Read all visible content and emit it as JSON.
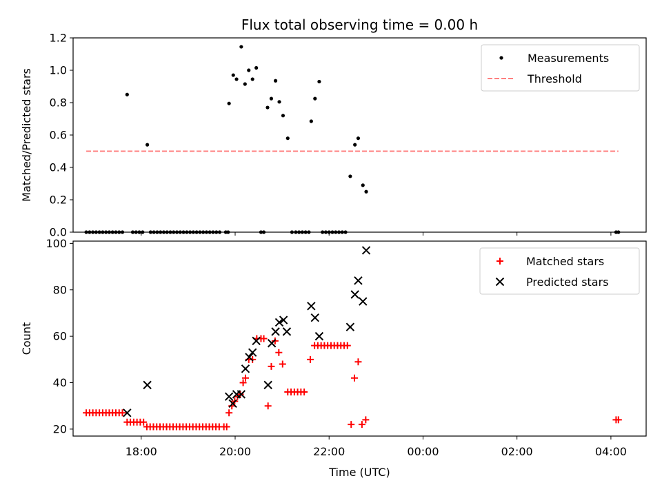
{
  "chart_data": [
    {
      "type": "scatter",
      "title": "Flux total observing time = 0.00 h",
      "xlabel": "",
      "ylabel": "Matched/Predicted stars",
      "xlim": [
        16.55,
        28.75
      ],
      "ylim": [
        0,
        1.2
      ],
      "yticks": [
        0.0,
        0.2,
        0.4,
        0.6,
        0.8,
        1.0,
        1.2
      ],
      "ytick_labels": [
        "0.0",
        "0.2",
        "0.4",
        "0.6",
        "0.8",
        "1.0",
        "1.2"
      ],
      "legend_position": "top-right",
      "series": [
        {
          "name": "Measurements",
          "marker": "dot",
          "color": "#000000",
          "points": [
            [
              16.83,
              0
            ],
            [
              16.9,
              0
            ],
            [
              16.97,
              0
            ],
            [
              17.04,
              0
            ],
            [
              17.11,
              0
            ],
            [
              17.18,
              0
            ],
            [
              17.25,
              0
            ],
            [
              17.32,
              0
            ],
            [
              17.39,
              0
            ],
            [
              17.46,
              0
            ],
            [
              17.53,
              0
            ],
            [
              17.6,
              0
            ],
            [
              17.7,
              0.85
            ],
            [
              17.82,
              0
            ],
            [
              17.89,
              0
            ],
            [
              17.96,
              0
            ],
            [
              18.03,
              0
            ],
            [
              18.13,
              0.54
            ],
            [
              18.2,
              0
            ],
            [
              18.27,
              0
            ],
            [
              18.34,
              0
            ],
            [
              18.41,
              0
            ],
            [
              18.48,
              0
            ],
            [
              18.55,
              0
            ],
            [
              18.62,
              0
            ],
            [
              18.69,
              0
            ],
            [
              18.76,
              0
            ],
            [
              18.83,
              0
            ],
            [
              18.9,
              0
            ],
            [
              18.97,
              0
            ],
            [
              19.04,
              0
            ],
            [
              19.11,
              0
            ],
            [
              19.18,
              0
            ],
            [
              19.25,
              0
            ],
            [
              19.32,
              0
            ],
            [
              19.39,
              0
            ],
            [
              19.46,
              0
            ],
            [
              19.53,
              0
            ],
            [
              19.6,
              0
            ],
            [
              19.67,
              0
            ],
            [
              19.8,
              0
            ],
            [
              19.85,
              0
            ],
            [
              19.87,
              0.795
            ],
            [
              19.96,
              0.97
            ],
            [
              20.03,
              0.945
            ],
            [
              20.13,
              1.145
            ],
            [
              20.21,
              0.915
            ],
            [
              20.29,
              1.0
            ],
            [
              20.37,
              0.945
            ],
            [
              20.45,
              1.015
            ],
            [
              20.55,
              0
            ],
            [
              20.61,
              0
            ],
            [
              20.69,
              0.77
            ],
            [
              20.77,
              0.825
            ],
            [
              20.86,
              0.935
            ],
            [
              20.94,
              0.805
            ],
            [
              21.02,
              0.72
            ],
            [
              21.12,
              0.58
            ],
            [
              21.21,
              0
            ],
            [
              21.29,
              0
            ],
            [
              21.36,
              0
            ],
            [
              21.43,
              0
            ],
            [
              21.5,
              0
            ],
            [
              21.57,
              0
            ],
            [
              21.62,
              0.685
            ],
            [
              21.7,
              0.825
            ],
            [
              21.79,
              0.93
            ],
            [
              21.86,
              0
            ],
            [
              21.93,
              0
            ],
            [
              22.0,
              0
            ],
            [
              22.07,
              0
            ],
            [
              22.14,
              0
            ],
            [
              22.21,
              0
            ],
            [
              22.28,
              0
            ],
            [
              22.35,
              0
            ],
            [
              22.45,
              0.345
            ],
            [
              22.55,
              0.54
            ],
            [
              22.62,
              0.58
            ],
            [
              22.72,
              0.29
            ],
            [
              22.79,
              0.25
            ],
            [
              28.11,
              0
            ],
            [
              28.16,
              0
            ]
          ]
        },
        {
          "name": "Threshold",
          "marker": "dashed-line",
          "color": "#ff8080",
          "points": [
            [
              16.83,
              0.5
            ],
            [
              28.16,
              0.5
            ]
          ]
        }
      ]
    },
    {
      "type": "scatter",
      "title": "",
      "xlabel": "Time (UTC)",
      "ylabel": "Count",
      "xlim": [
        16.55,
        28.75
      ],
      "ylim": [
        17,
        101
      ],
      "yticks": [
        20,
        40,
        60,
        80,
        100
      ],
      "ytick_labels": [
        "20",
        "40",
        "60",
        "80",
        "100"
      ],
      "xticks": [
        18,
        20,
        22,
        24,
        26,
        28
      ],
      "xtick_labels": [
        "18:00",
        "20:00",
        "22:00",
        "00:00",
        "02:00",
        "04:00"
      ],
      "legend_position": "top-right",
      "series": [
        {
          "name": "Matched stars",
          "marker": "plus",
          "color": "#ff0000",
          "points": [
            [
              16.83,
              27
            ],
            [
              16.9,
              27
            ],
            [
              16.97,
              27
            ],
            [
              17.04,
              27
            ],
            [
              17.11,
              27
            ],
            [
              17.18,
              27
            ],
            [
              17.25,
              27
            ],
            [
              17.32,
              27
            ],
            [
              17.39,
              27
            ],
            [
              17.46,
              27
            ],
            [
              17.53,
              27
            ],
            [
              17.6,
              27
            ],
            [
              17.7,
              23
            ],
            [
              17.77,
              23
            ],
            [
              17.84,
              23
            ],
            [
              17.91,
              23
            ],
            [
              17.98,
              23
            ],
            [
              18.05,
              23
            ],
            [
              18.12,
              21
            ],
            [
              18.19,
              21
            ],
            [
              18.26,
              21
            ],
            [
              18.33,
              21
            ],
            [
              18.4,
              21
            ],
            [
              18.47,
              21
            ],
            [
              18.54,
              21
            ],
            [
              18.61,
              21
            ],
            [
              18.68,
              21
            ],
            [
              18.75,
              21
            ],
            [
              18.82,
              21
            ],
            [
              18.89,
              21
            ],
            [
              18.96,
              21
            ],
            [
              19.03,
              21
            ],
            [
              19.1,
              21
            ],
            [
              19.17,
              21
            ],
            [
              19.24,
              21
            ],
            [
              19.31,
              21
            ],
            [
              19.38,
              21
            ],
            [
              19.45,
              21
            ],
            [
              19.52,
              21
            ],
            [
              19.59,
              21
            ],
            [
              19.66,
              21
            ],
            [
              19.76,
              21
            ],
            [
              19.82,
              21
            ],
            [
              19.87,
              27
            ],
            [
              19.93,
              30
            ],
            [
              19.99,
              32
            ],
            [
              20.05,
              34
            ],
            [
              20.11,
              35
            ],
            [
              20.17,
              40
            ],
            [
              20.22,
              42
            ],
            [
              20.29,
              50
            ],
            [
              20.37,
              50
            ],
            [
              20.46,
              59
            ],
            [
              20.55,
              59
            ],
            [
              20.61,
              59
            ],
            [
              20.7,
              30
            ],
            [
              20.77,
              47
            ],
            [
              20.85,
              58
            ],
            [
              20.93,
              53
            ],
            [
              21.01,
              48
            ],
            [
              21.12,
              36
            ],
            [
              21.19,
              36
            ],
            [
              21.26,
              36
            ],
            [
              21.33,
              36
            ],
            [
              21.4,
              36
            ],
            [
              21.47,
              36
            ],
            [
              21.6,
              50
            ],
            [
              21.69,
              56
            ],
            [
              21.76,
              56
            ],
            [
              21.83,
              56
            ],
            [
              21.9,
              56
            ],
            [
              21.97,
              56
            ],
            [
              22.04,
              56
            ],
            [
              22.11,
              56
            ],
            [
              22.18,
              56
            ],
            [
              22.25,
              56
            ],
            [
              22.32,
              56
            ],
            [
              22.39,
              56
            ],
            [
              22.47,
              22
            ],
            [
              22.54,
              42
            ],
            [
              22.62,
              49
            ],
            [
              22.7,
              22
            ],
            [
              22.78,
              24
            ],
            [
              28.11,
              24
            ],
            [
              28.16,
              24
            ]
          ]
        },
        {
          "name": "Predicted stars",
          "marker": "x",
          "color": "#000000",
          "points": [
            [
              17.7,
              27
            ],
            [
              18.13,
              39
            ],
            [
              19.87,
              34
            ],
            [
              19.95,
              31
            ],
            [
              20.03,
              35
            ],
            [
              20.13,
              35
            ],
            [
              20.22,
              46
            ],
            [
              20.3,
              51
            ],
            [
              20.37,
              53
            ],
            [
              20.45,
              58
            ],
            [
              20.7,
              39
            ],
            [
              20.78,
              57
            ],
            [
              20.86,
              62
            ],
            [
              20.94,
              66
            ],
            [
              21.03,
              67
            ],
            [
              21.1,
              62
            ],
            [
              21.62,
              73
            ],
            [
              21.7,
              68
            ],
            [
              21.79,
              60
            ],
            [
              22.45,
              64
            ],
            [
              22.55,
              78
            ],
            [
              22.62,
              84
            ],
            [
              22.72,
              75
            ],
            [
              22.79,
              97
            ]
          ]
        }
      ]
    }
  ]
}
